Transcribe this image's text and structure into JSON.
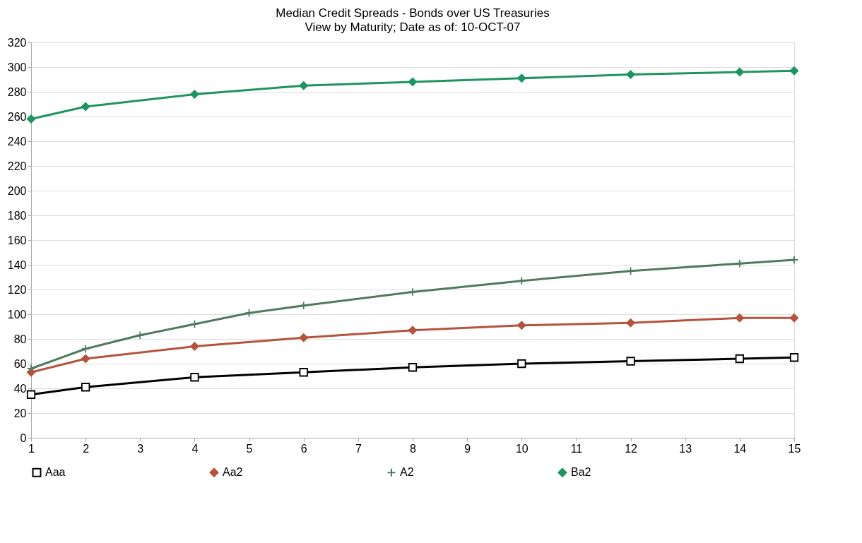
{
  "chart_data": {
    "type": "line",
    "title": "Median Credit Spreads - Bonds over US Treasuries",
    "subtitle": "View by Maturity; Date as of: 10-OCT-07",
    "xlim": [
      1,
      15
    ],
    "xticks": [
      1,
      2,
      3,
      4,
      5,
      6,
      7,
      8,
      9,
      10,
      11,
      12,
      13,
      14,
      15
    ],
    "ylim": [
      0,
      320
    ],
    "yticks": [
      0,
      20,
      40,
      60,
      80,
      100,
      120,
      140,
      160,
      180,
      200,
      220,
      240,
      260,
      280,
      300,
      320
    ],
    "grid": "y",
    "legend": "bottom",
    "line_style": "solid",
    "series": [
      {
        "name": "Aaa",
        "color": "#000000",
        "marker": "square",
        "x": [
          1,
          2,
          4,
          6,
          8,
          10,
          12,
          14,
          15
        ],
        "values": [
          35,
          41,
          49,
          53,
          57,
          60,
          62,
          64,
          65
        ]
      },
      {
        "name": "Aa2",
        "color": "#b5533c",
        "marker": "diamond",
        "x": [
          1,
          2,
          4,
          6,
          8,
          10,
          12,
          14,
          15
        ],
        "values": [
          53,
          64,
          74,
          81,
          87,
          91,
          93,
          97,
          97
        ]
      },
      {
        "name": "A2",
        "color": "#4e7a5e",
        "marker": "cross",
        "x": [
          1,
          2,
          3,
          4,
          5,
          6,
          8,
          10,
          12,
          14,
          15
        ],
        "values": [
          56,
          72,
          83,
          92,
          101,
          107,
          118,
          127,
          135,
          141,
          144
        ]
      },
      {
        "name": "Ba2",
        "color": "#1e9460",
        "marker": "diamond",
        "x": [
          1,
          2,
          4,
          6,
          8,
          10,
          12,
          14,
          15
        ],
        "values": [
          258,
          268,
          278,
          285,
          288,
          291,
          294,
          296,
          297
        ]
      }
    ]
  }
}
